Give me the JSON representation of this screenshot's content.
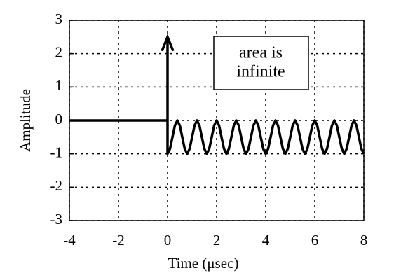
{
  "chart_data": {
    "type": "line",
    "x_label": "Time (μsec)",
    "y_label": "Amplitude",
    "xlim": [
      -4,
      8
    ],
    "ylim": [
      -3,
      3
    ],
    "xticks": [
      -4,
      -2,
      0,
      2,
      4,
      6,
      8
    ],
    "yticks": [
      -3,
      -2,
      -1,
      0,
      1,
      2,
      3
    ],
    "grid": true,
    "series": [
      {
        "color": "#000000",
        "x": [
          -4,
          0,
          0,
          0.1,
          0.2,
          0.3,
          0.4,
          0.5,
          0.6,
          0.7,
          0.8,
          0.9,
          1,
          1.1,
          1.2,
          1.3,
          1.4,
          1.5,
          1.6,
          1.7,
          1.8,
          1.9,
          2,
          2.1,
          2.2,
          2.3,
          2.4,
          2.5,
          2.6,
          2.7,
          2.8,
          2.9,
          3,
          3.1,
          3.2,
          3.3,
          3.4,
          3.5,
          3.6,
          3.7,
          3.8,
          3.9,
          4,
          4.1,
          4.2,
          4.3,
          4.4,
          4.5,
          4.6,
          4.7,
          4.8,
          4.9,
          5,
          5.1,
          5.2,
          5.3,
          5.4,
          5.5,
          5.6,
          5.7,
          5.8,
          5.9,
          6,
          6.1,
          6.2,
          6.3,
          6.4,
          6.5,
          6.6,
          6.7,
          6.8,
          6.9,
          7,
          7.1,
          7.2,
          7.3,
          7.4,
          7.5,
          7.6,
          7.7,
          7.8,
          7.9,
          8
        ],
        "values": [
          0,
          0,
          -1,
          -0.85,
          -0.5,
          -0.15,
          0,
          -0.15,
          -0.5,
          -0.85,
          -1,
          -0.85,
          -0.5,
          -0.15,
          0,
          -0.15,
          -0.5,
          -0.85,
          -1,
          -0.85,
          -0.5,
          -0.15,
          0,
          -0.15,
          -0.5,
          -0.85,
          -1,
          -0.85,
          -0.5,
          -0.15,
          0,
          -0.15,
          -0.5,
          -0.85,
          -1,
          -0.85,
          -0.5,
          -0.15,
          0,
          -0.15,
          -0.5,
          -0.85,
          -1,
          -0.85,
          -0.5,
          -0.15,
          0,
          -0.15,
          -0.5,
          -0.85,
          -1,
          -0.85,
          -0.5,
          -0.15,
          0,
          -0.15,
          -0.5,
          -0.85,
          -1,
          -0.85,
          -0.5,
          -0.15,
          0,
          -0.15,
          -0.5,
          -0.85,
          -1,
          -0.85,
          -0.5,
          -0.15,
          0,
          -0.15,
          -0.5,
          -0.85,
          -1,
          -0.85,
          -0.5,
          -0.15,
          0,
          -0.15,
          -0.5,
          -0.85,
          -1
        ]
      }
    ],
    "impulse": {
      "x": 0,
      "value": 2.5,
      "color": "#000000"
    },
    "annotation": {
      "lines": [
        "area is",
        "infinite"
      ]
    }
  }
}
